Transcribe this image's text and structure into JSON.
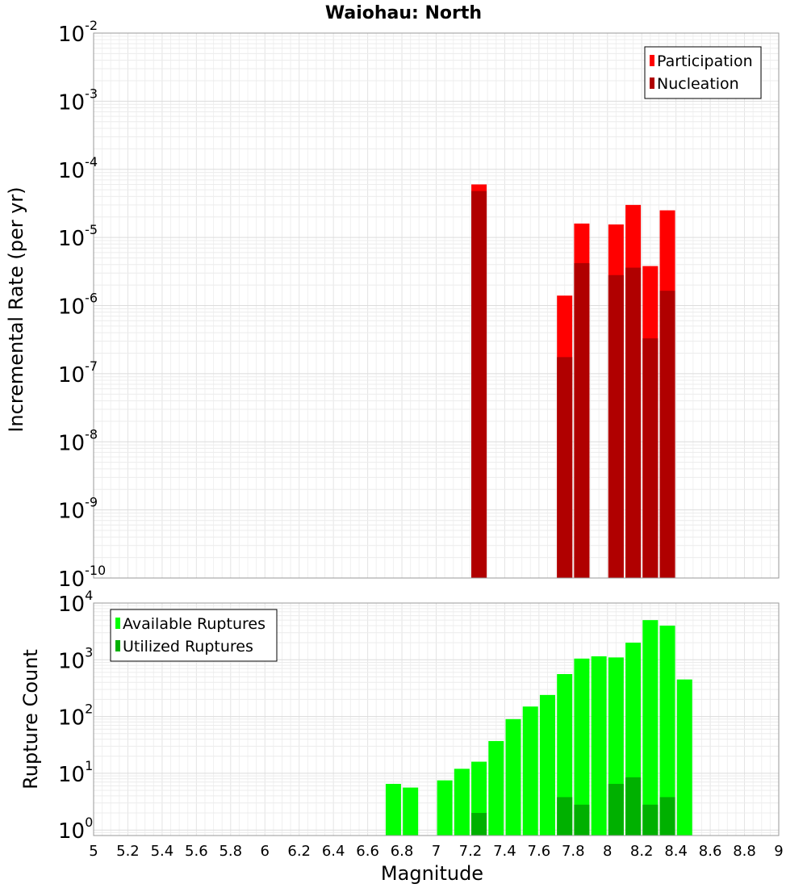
{
  "chart_data": [
    {
      "type": "bar",
      "title": "Waiohau: North",
      "xlabel": "",
      "ylabel": "Incremental Rate (per yr)",
      "yscale": "log",
      "ylim": [
        1e-10,
        0.01
      ],
      "xlim": [
        5,
        9
      ],
      "y_ticks": [
        "10^-10",
        "10^-9",
        "10^-8",
        "10^-7",
        "10^-6",
        "10^-5",
        "10^-4",
        "10^-3",
        "10^-2"
      ],
      "legend_position": "top-right",
      "grid": true,
      "series": [
        {
          "name": "Participation",
          "color": "#ff0000",
          "x": [
            7.25,
            7.75,
            7.85,
            8.05,
            8.15,
            8.25,
            8.35
          ],
          "values": [
            6e-05,
            1.4e-06,
            1.6e-05,
            1.55e-05,
            3e-05,
            3.8e-06,
            2.5e-05
          ]
        },
        {
          "name": "Nucleation",
          "color": "#b00000",
          "x": [
            7.25,
            7.75,
            7.85,
            8.05,
            8.15,
            8.25,
            8.35
          ],
          "values": [
            4.8e-05,
            1.75e-07,
            4.2e-06,
            2.8e-06,
            3.6e-06,
            3.3e-07,
            1.65e-06
          ]
        }
      ]
    },
    {
      "type": "bar",
      "title": "",
      "xlabel": "Magnitude",
      "ylabel": "Rupture Count",
      "yscale": "log",
      "ylim": [
        0.8,
        10000
      ],
      "xlim": [
        5,
        9
      ],
      "y_ticks": [
        "10^0",
        "10^1",
        "10^2",
        "10^3",
        "10^4"
      ],
      "x_ticks": [
        "5",
        "5.2",
        "5.4",
        "5.6",
        "5.8",
        "6",
        "6.2",
        "6.4",
        "6.6",
        "6.8",
        "7",
        "7.2",
        "7.4",
        "7.6",
        "7.8",
        "8",
        "8.2",
        "8.4",
        "8.6",
        "8.8",
        "9"
      ],
      "legend_position": "top-left",
      "grid": true,
      "series": [
        {
          "name": "Available Ruptures",
          "color": "#00ff00",
          "x": [
            6.75,
            6.85,
            7.05,
            7.15,
            7.25,
            7.35,
            7.45,
            7.55,
            7.65,
            7.75,
            7.85,
            7.95,
            8.05,
            8.15,
            8.25,
            8.35,
            8.45
          ],
          "values": [
            6.5,
            5.6,
            7.5,
            12,
            16,
            37,
            90,
            150,
            240,
            560,
            1050,
            1150,
            1100,
            2000,
            5000,
            4000,
            450
          ]
        },
        {
          "name": "Utilized Ruptures",
          "color": "#00b000",
          "x": [
            7.25,
            7.75,
            7.85,
            8.05,
            8.15,
            8.25,
            8.35
          ],
          "values": [
            2,
            3.8,
            2.8,
            6.5,
            8.5,
            2.8,
            3.8
          ]
        }
      ]
    }
  ]
}
